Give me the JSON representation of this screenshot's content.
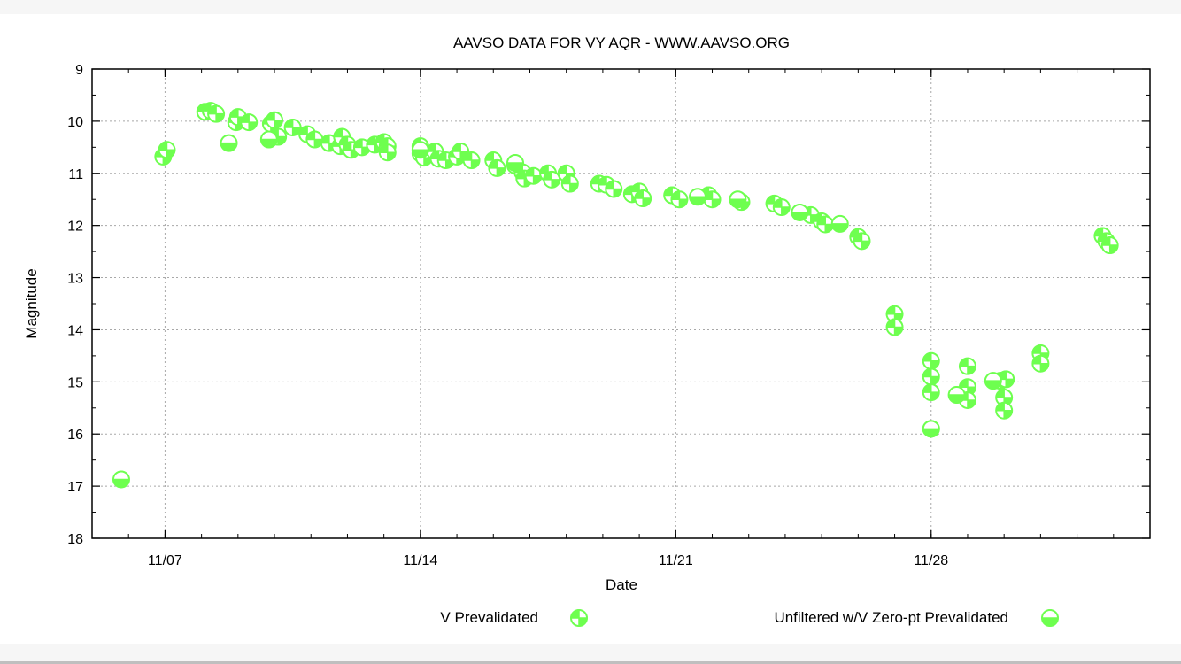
{
  "chart_data": {
    "type": "scatter",
    "title": "AAVSO DATA FOR VY AQR - WWW.AAVSO.ORG",
    "xlabel": "Date",
    "ylabel": "Magnitude",
    "xlim": [
      "2010-11-05",
      "2010-12-04"
    ],
    "ylim": [
      9,
      18
    ],
    "y_inverted": true,
    "grid": true,
    "legend_position": "bottom",
    "x_ticks": [
      {
        "date": "2010-11-07",
        "label": "11/07"
      },
      {
        "date": "2010-11-14",
        "label": "11/14"
      },
      {
        "date": "2010-11-21",
        "label": "11/21"
      },
      {
        "date": "2010-11-28",
        "label": "11/28"
      }
    ],
    "y_ticks": [
      9,
      10,
      11,
      12,
      13,
      14,
      15,
      16,
      17,
      18
    ],
    "series_color": "#6eff4f",
    "series": [
      {
        "name": "V Prevalidated",
        "marker": "circle-quartered",
        "points": [
          [
            "2010-11-06.95",
            10.68
          ],
          [
            "2010-11-07.05",
            10.55
          ],
          [
            "2010-11-08.10",
            9.82
          ],
          [
            "2010-11-08.25",
            9.8
          ],
          [
            "2010-11-08.40",
            9.86
          ],
          [
            "2010-11-08.95",
            10.02
          ],
          [
            "2010-11-09.00",
            9.92
          ],
          [
            "2010-11-09.30",
            10.02
          ],
          [
            "2010-11-09.90",
            10.05
          ],
          [
            "2010-11-10.00",
            9.98
          ],
          [
            "2010-11-10.10",
            10.3
          ],
          [
            "2010-11-10.50",
            10.12
          ],
          [
            "2010-11-10.90",
            10.25
          ],
          [
            "2010-11-11.10",
            10.35
          ],
          [
            "2010-11-11.50",
            10.42
          ],
          [
            "2010-11-11.80",
            10.48
          ],
          [
            "2010-11-11.85",
            10.3
          ],
          [
            "2010-11-12.00",
            10.45
          ],
          [
            "2010-11-12.10",
            10.55
          ],
          [
            "2010-11-12.40",
            10.5
          ],
          [
            "2010-11-12.75",
            10.45
          ],
          [
            "2010-11-13.00",
            10.4
          ],
          [
            "2010-11-13.10",
            10.48
          ],
          [
            "2010-11-13.10",
            10.6
          ],
          [
            "2010-11-14.00",
            10.48
          ],
          [
            "2010-11-14.00",
            10.62
          ],
          [
            "2010-11-14.10",
            10.7
          ],
          [
            "2010-11-14.40",
            10.58
          ],
          [
            "2010-11-14.50",
            10.72
          ],
          [
            "2010-11-14.70",
            10.75
          ],
          [
            "2010-11-15.00",
            10.68
          ],
          [
            "2010-11-15.10",
            10.58
          ],
          [
            "2010-11-15.40",
            10.75
          ],
          [
            "2010-11-16.00",
            10.75
          ],
          [
            "2010-11-16.10",
            10.9
          ],
          [
            "2010-11-16.60",
            10.85
          ],
          [
            "2010-11-16.80",
            10.98
          ],
          [
            "2010-11-16.85",
            11.1
          ],
          [
            "2010-11-17.10",
            11.05
          ],
          [
            "2010-11-17.50",
            11.0
          ],
          [
            "2010-11-17.60",
            11.12
          ],
          [
            "2010-11-18.00",
            11.0
          ],
          [
            "2010-11-18.10",
            11.2
          ],
          [
            "2010-11-18.90",
            11.2
          ],
          [
            "2010-11-19.10",
            11.22
          ],
          [
            "2010-11-19.30",
            11.3
          ],
          [
            "2010-11-19.80",
            11.4
          ],
          [
            "2010-11-20.00",
            11.35
          ],
          [
            "2010-11-20.10",
            11.48
          ],
          [
            "2010-11-20.90",
            11.42
          ],
          [
            "2010-11-21.10",
            11.5
          ],
          [
            "2010-11-21.90",
            11.42
          ],
          [
            "2010-11-22.00",
            11.5
          ],
          [
            "2010-11-22.80",
            11.55
          ],
          [
            "2010-11-23.70",
            11.58
          ],
          [
            "2010-11-23.90",
            11.65
          ],
          [
            "2010-11-24.70",
            11.8
          ],
          [
            "2010-11-25.00",
            11.92
          ],
          [
            "2010-11-25.10",
            11.98
          ],
          [
            "2010-11-26.00",
            12.22
          ],
          [
            "2010-11-26.10",
            12.3
          ],
          [
            "2010-11-27.00",
            13.7
          ],
          [
            "2010-11-27.00",
            13.95
          ],
          [
            "2010-11-28.00",
            14.6
          ],
          [
            "2010-11-28.00",
            14.9
          ],
          [
            "2010-11-28.00",
            15.2
          ],
          [
            "2010-11-28.00",
            15.9
          ],
          [
            "2010-11-28.90",
            15.25
          ],
          [
            "2010-11-29.00",
            14.7
          ],
          [
            "2010-11-29.00",
            15.1
          ],
          [
            "2010-11-29.00",
            15.35
          ],
          [
            "2010-11-29.90",
            14.98
          ],
          [
            "2010-11-30.00",
            15.3
          ],
          [
            "2010-11-30.00",
            15.55
          ],
          [
            "2010-11-30.05",
            14.95
          ],
          [
            "2010-12-01.00",
            14.45
          ],
          [
            "2010-12-01.00",
            14.65
          ],
          [
            "2010-12-02.70",
            12.2
          ],
          [
            "2010-12-02.80",
            12.3
          ],
          [
            "2010-12-02.90",
            12.38
          ]
        ]
      },
      {
        "name": "Unfiltered w/V Zero-pt Prevalidated",
        "marker": "circle-half",
        "points": [
          [
            "2010-11-05.80",
            16.87
          ],
          [
            "2010-11-08.75",
            10.42
          ],
          [
            "2010-11-09.85",
            10.35
          ],
          [
            "2010-11-14.00",
            10.55
          ],
          [
            "2010-11-16.60",
            10.8
          ],
          [
            "2010-11-21.60",
            11.45
          ],
          [
            "2010-11-22.70",
            11.5
          ],
          [
            "2010-11-24.40",
            11.75
          ],
          [
            "2010-11-25.50",
            11.97
          ],
          [
            "2010-11-28.00",
            15.9
          ],
          [
            "2010-11-28.70",
            15.25
          ],
          [
            "2010-11-29.70",
            14.98
          ]
        ]
      }
    ]
  }
}
